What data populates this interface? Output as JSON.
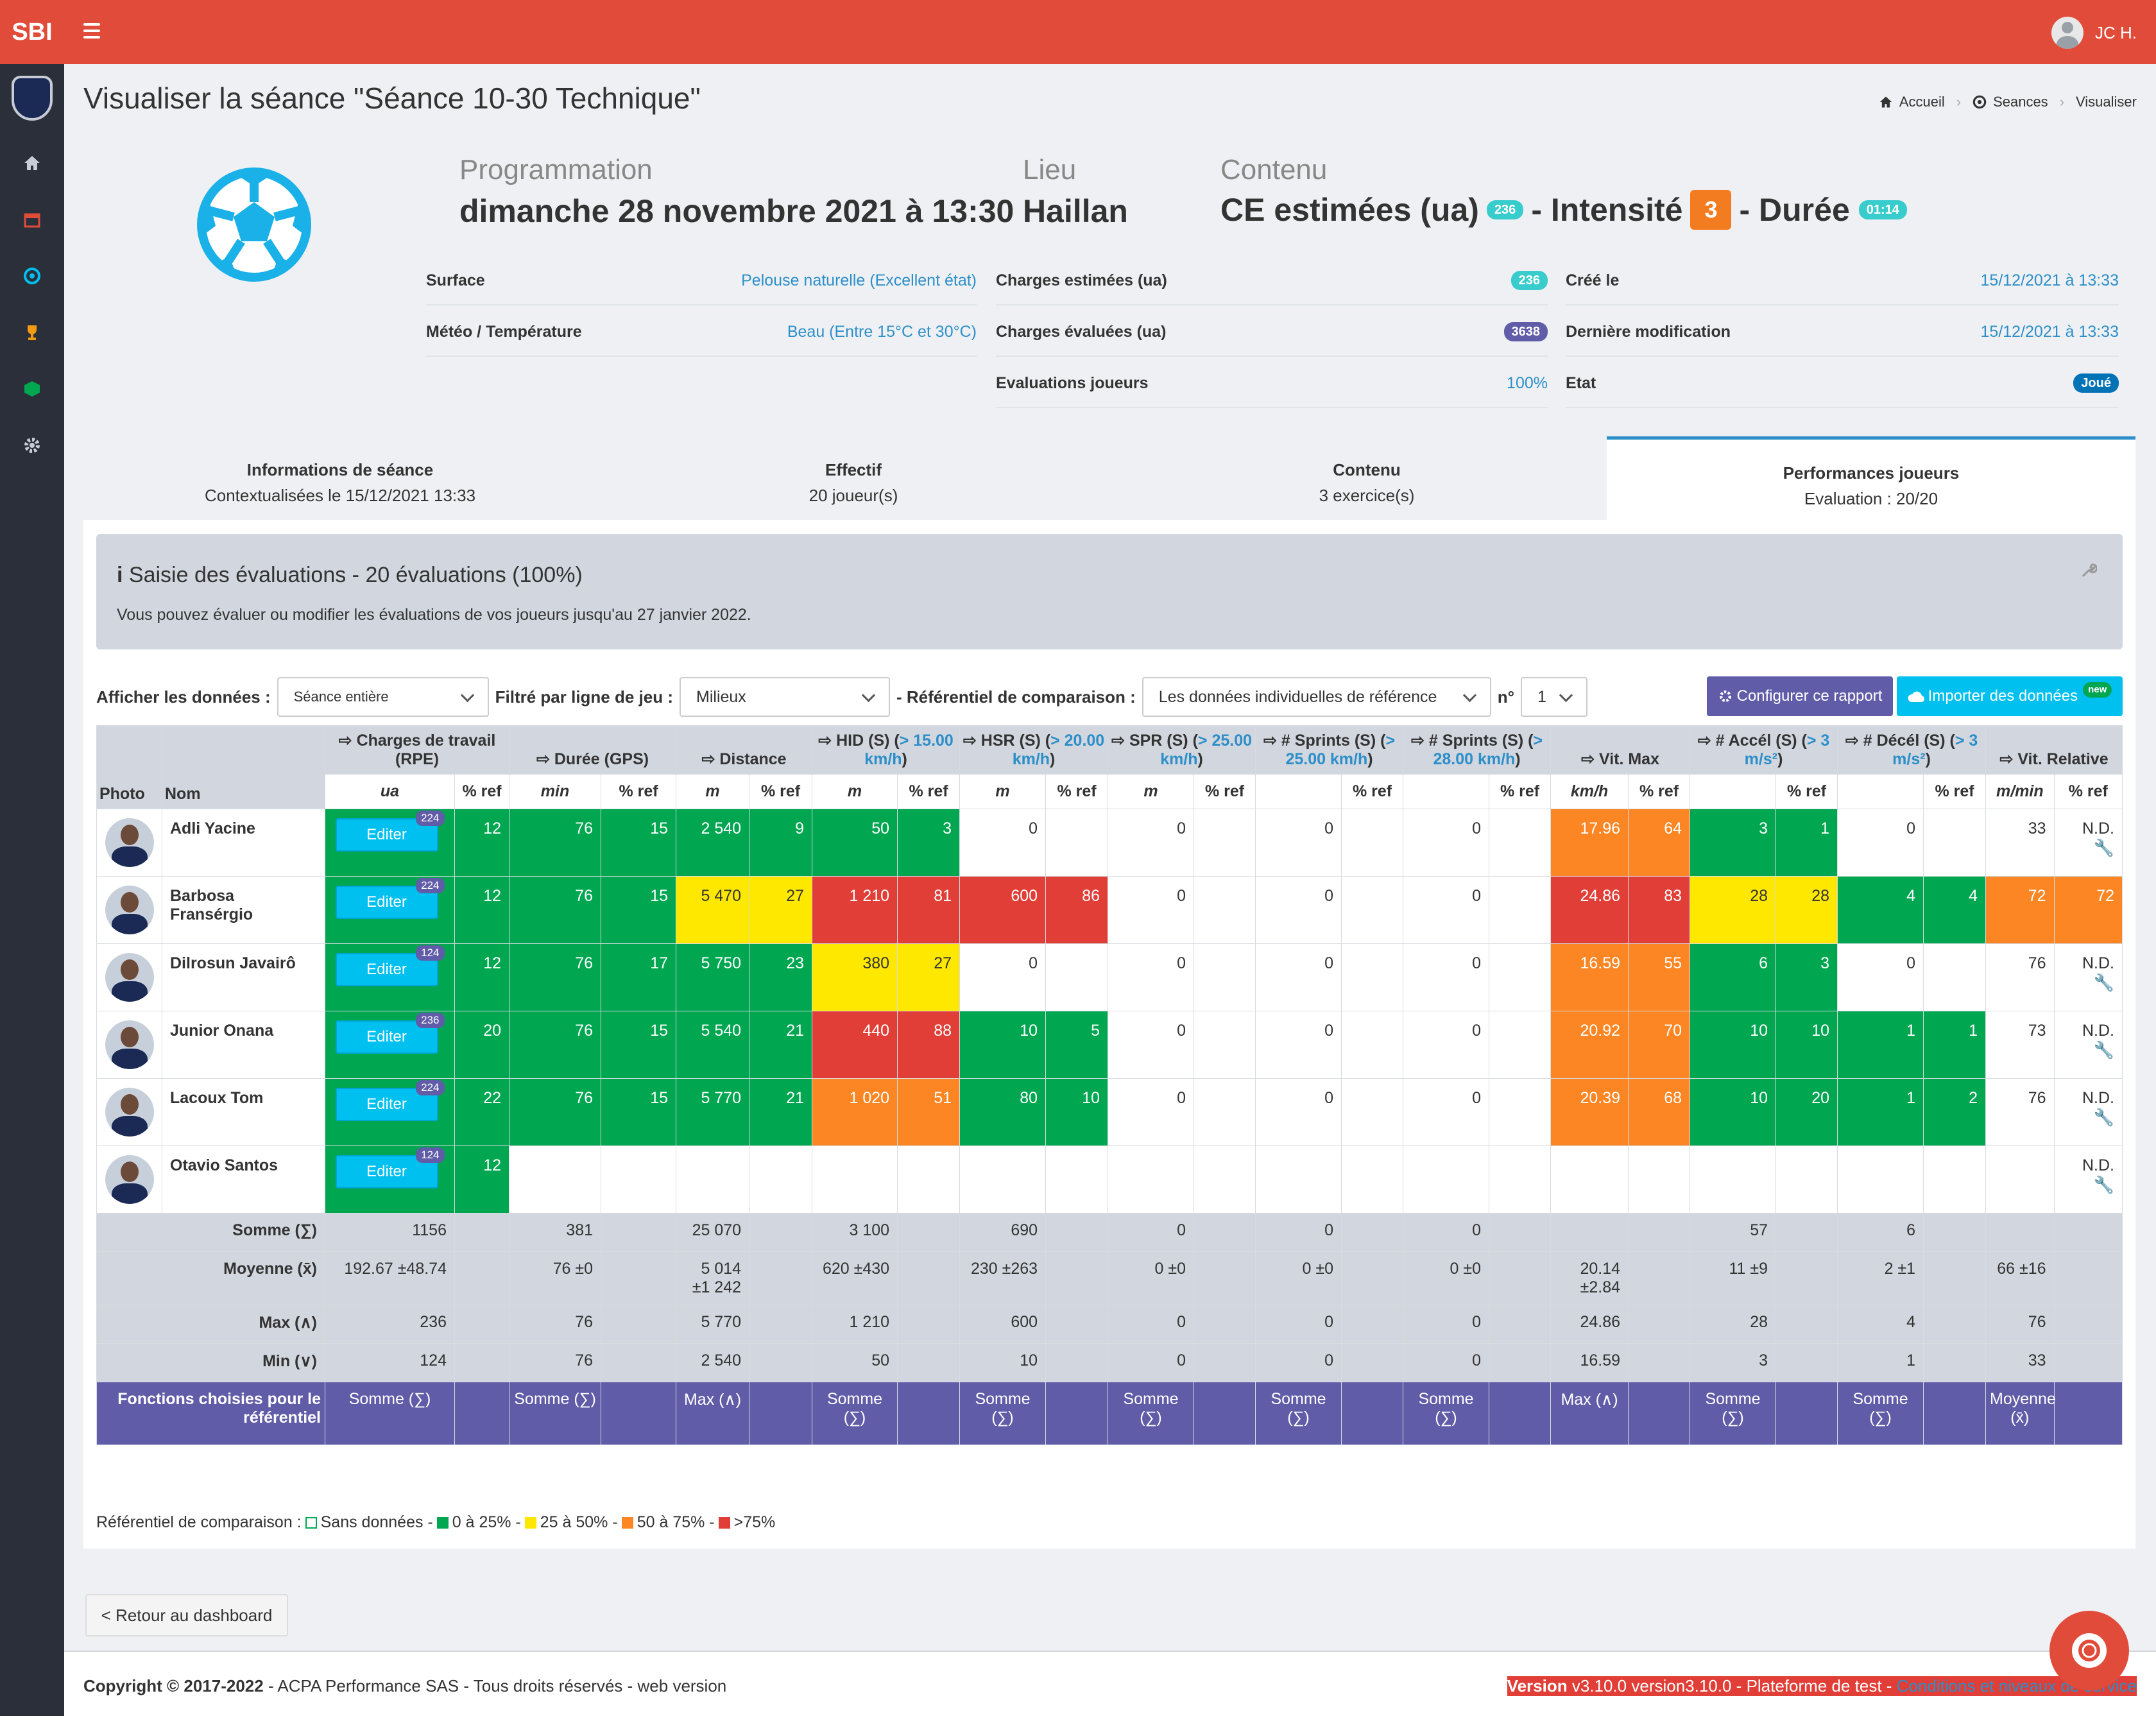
{
  "brand": {
    "logo": "SBI",
    "accent": "#e14c3a"
  },
  "user": {
    "name": "JC H."
  },
  "page": {
    "title": "Visualiser la séance \"Séance 10-30 Technique\""
  },
  "breadcrumb": {
    "home": "Accueil",
    "sessions": "Seances",
    "current": "Visualiser"
  },
  "summary": {
    "programmation_label": "Programmation",
    "programmation_value": "dimanche 28 novembre 2021 à 13:30",
    "lieu_label": "Lieu",
    "lieu_value": "Haillan",
    "contenu_label": "Contenu",
    "ce_label": "CE estimées (ua)",
    "ce_badge": "236",
    "intensite_label": "- Intensité",
    "intensite_value": "3",
    "duree_label": "- Durée",
    "duree_badge": "01:14"
  },
  "info": {
    "surface_label": "Surface",
    "surface_value": "Pelouse naturelle (Excellent état)",
    "meteo_label": "Météo / Température",
    "meteo_value": "Beau (Entre 15°C et 30°C)",
    "ce_est_label": "Charges estimées (ua)",
    "ce_est_value": "236",
    "ce_eval_label": "Charges évaluées (ua)",
    "ce_eval_value": "3638",
    "eval_label": "Evaluations joueurs",
    "eval_value": "100%",
    "cree_label": "Créé le",
    "cree_value": "15/12/2021 à 13:33",
    "modif_label": "Dernière modification",
    "modif_value": "15/12/2021 à 13:33",
    "etat_label": "Etat",
    "etat_value": "Joué"
  },
  "tabs": [
    {
      "title": "Informations de séance",
      "sub": "Contextualisées le 15/12/2021 13:33"
    },
    {
      "title": "Effectif",
      "sub": "20 joueur(s)"
    },
    {
      "title": "Contenu",
      "sub": "3 exercice(s)"
    },
    {
      "title": "Performances joueurs",
      "sub": "Evaluation : 20/20"
    }
  ],
  "alert": {
    "title": "Saisie des évaluations - 20 évaluations (100%)",
    "text": "Vous pouvez évaluer ou modifier les évaluations de vos joueurs jusqu'au 27 janvier 2022."
  },
  "filters": {
    "afficher_label": "Afficher les données :",
    "afficher_value": "Séance entière",
    "filtre_label": "Filtré par ligne de jeu :",
    "filtre_value": "Milieux",
    "ref_label": "- Référentiel de comparaison :",
    "ref_value": "Les données individuelles de référence",
    "no_label": "n°",
    "no_value": "1",
    "config_btn": "Configurer ce rapport",
    "import_btn": "Importer des données",
    "import_badge": "new"
  },
  "table": {
    "photo": "Photo",
    "nom": "Nom",
    "groups": [
      {
        "label": "Charges de travail (RPE)",
        "hl": ""
      },
      {
        "label": "Durée (GPS)",
        "hl": ""
      },
      {
        "label": "Distance",
        "hl": ""
      },
      {
        "label": "HID (S) (",
        "hl": "> 15.00 km/h",
        "end": ")"
      },
      {
        "label": "HSR (S) (",
        "hl": "> 20.00 km/h",
        "end": ")"
      },
      {
        "label": "SPR (S) (",
        "hl": "> 25.00 km/h",
        "end": ")"
      },
      {
        "label": "# Sprints (S) (",
        "hl": "> 25.00 km/h",
        "end": ")"
      },
      {
        "label": "# Sprints (S) (",
        "hl": "> 28.00 km/h",
        "end": ")"
      },
      {
        "label": "Vit. Max",
        "hl": ""
      },
      {
        "label": "# Accél (S) (",
        "hl": "> 3 m/s²",
        "end": ")"
      },
      {
        "label": "# Décél (S) (",
        "hl": "> 3 m/s²",
        "end": ")"
      },
      {
        "label": "Vit. Relative",
        "hl": ""
      }
    ],
    "units": [
      "ua",
      "min",
      "m",
      "m",
      "m",
      "m",
      "",
      "",
      "km/h",
      "",
      "",
      "m/min"
    ],
    "pct_ref": "% ref",
    "edit_label": "Editer",
    "nd": "N.D.",
    "rows": [
      {
        "name": "Adli Yacine",
        "badge": "224",
        "cells": [
          [
            "12",
            "g"
          ],
          [
            "76",
            "g"
          ],
          [
            "15",
            "g"
          ],
          [
            "2 540",
            "g"
          ],
          [
            "9",
            "g"
          ],
          [
            "50",
            "g"
          ],
          [
            "3",
            "g"
          ],
          [
            "0",
            ""
          ],
          [
            "",
            ""
          ],
          [
            "0",
            ""
          ],
          [
            "",
            ""
          ],
          [
            "0",
            ""
          ],
          [
            "",
            ""
          ],
          [
            "0",
            ""
          ],
          [
            "",
            ""
          ],
          [
            "17.96",
            "o"
          ],
          [
            "64",
            "o"
          ],
          [
            "3",
            "g"
          ],
          [
            "1",
            "g"
          ],
          [
            "0",
            ""
          ],
          [
            "",
            ""
          ],
          [
            "33",
            ""
          ],
          [
            "N.D.",
            "nd"
          ]
        ]
      },
      {
        "name": "Barbosa Fransérgio",
        "badge": "224",
        "cells": [
          [
            "12",
            "g"
          ],
          [
            "76",
            "g"
          ],
          [
            "15",
            "g"
          ],
          [
            "5 470",
            "y"
          ],
          [
            "27",
            "y"
          ],
          [
            "1 210",
            "r"
          ],
          [
            "81",
            "r"
          ],
          [
            "600",
            "r"
          ],
          [
            "86",
            "r"
          ],
          [
            "0",
            ""
          ],
          [
            "",
            ""
          ],
          [
            "0",
            ""
          ],
          [
            "",
            ""
          ],
          [
            "0",
            ""
          ],
          [
            "",
            ""
          ],
          [
            "24.86",
            "r"
          ],
          [
            "83",
            "r"
          ],
          [
            "28",
            "y"
          ],
          [
            "28",
            "y"
          ],
          [
            "4",
            "g"
          ],
          [
            "4",
            "g"
          ],
          [
            "72",
            "o"
          ],
          [
            "72",
            "o"
          ]
        ]
      },
      {
        "name": "Dilrosun Javairô",
        "badge": "124",
        "cells": [
          [
            "12",
            "g"
          ],
          [
            "76",
            "g"
          ],
          [
            "17",
            "g"
          ],
          [
            "5 750",
            "g"
          ],
          [
            "23",
            "g"
          ],
          [
            "380",
            "y"
          ],
          [
            "27",
            "y"
          ],
          [
            "0",
            ""
          ],
          [
            "",
            ""
          ],
          [
            "0",
            ""
          ],
          [
            "",
            ""
          ],
          [
            "0",
            ""
          ],
          [
            "",
            ""
          ],
          [
            "0",
            ""
          ],
          [
            "",
            ""
          ],
          [
            "16.59",
            "o"
          ],
          [
            "55",
            "o"
          ],
          [
            "6",
            "g"
          ],
          [
            "3",
            "g"
          ],
          [
            "0",
            ""
          ],
          [
            "",
            ""
          ],
          [
            "76",
            ""
          ],
          [
            "N.D.",
            "nd"
          ]
        ]
      },
      {
        "name": "Junior Onana",
        "badge": "236",
        "cells": [
          [
            "20",
            "g"
          ],
          [
            "76",
            "g"
          ],
          [
            "15",
            "g"
          ],
          [
            "5 540",
            "g"
          ],
          [
            "21",
            "g"
          ],
          [
            "440",
            "r"
          ],
          [
            "88",
            "r"
          ],
          [
            "10",
            "g"
          ],
          [
            "5",
            "g"
          ],
          [
            "0",
            ""
          ],
          [
            "",
            ""
          ],
          [
            "0",
            ""
          ],
          [
            "",
            ""
          ],
          [
            "0",
            ""
          ],
          [
            "",
            ""
          ],
          [
            "20.92",
            "o"
          ],
          [
            "70",
            "o"
          ],
          [
            "10",
            "g"
          ],
          [
            "10",
            "g"
          ],
          [
            "1",
            "g"
          ],
          [
            "1",
            "g"
          ],
          [
            "73",
            ""
          ],
          [
            "N.D.",
            "nd"
          ]
        ]
      },
      {
        "name": "Lacoux Tom",
        "badge": "224",
        "cells": [
          [
            "22",
            "g"
          ],
          [
            "76",
            "g"
          ],
          [
            "15",
            "g"
          ],
          [
            "5 770",
            "g"
          ],
          [
            "21",
            "g"
          ],
          [
            "1 020",
            "o"
          ],
          [
            "51",
            "o"
          ],
          [
            "80",
            "g"
          ],
          [
            "10",
            "g"
          ],
          [
            "0",
            ""
          ],
          [
            "",
            ""
          ],
          [
            "0",
            ""
          ],
          [
            "",
            ""
          ],
          [
            "0",
            ""
          ],
          [
            "",
            ""
          ],
          [
            "20.39",
            "o"
          ],
          [
            "68",
            "o"
          ],
          [
            "10",
            "g"
          ],
          [
            "20",
            "g"
          ],
          [
            "1",
            "g"
          ],
          [
            "2",
            "g"
          ],
          [
            "76",
            ""
          ],
          [
            "N.D.",
            "nd"
          ]
        ]
      },
      {
        "name": "Otavio Santos",
        "badge": "124",
        "cells": [
          [
            "12",
            "g"
          ],
          [
            "",
            ""
          ],
          [
            "",
            ""
          ],
          [
            "",
            ""
          ],
          [
            "",
            ""
          ],
          [
            "",
            ""
          ],
          [
            "",
            ""
          ],
          [
            "",
            ""
          ],
          [
            "",
            ""
          ],
          [
            "",
            ""
          ],
          [
            "",
            ""
          ],
          [
            "",
            ""
          ],
          [
            "",
            ""
          ],
          [
            "",
            ""
          ],
          [
            "",
            ""
          ],
          [
            "",
            ""
          ],
          [
            "",
            ""
          ],
          [
            "",
            ""
          ],
          [
            "",
            ""
          ],
          [
            "",
            ""
          ],
          [
            "",
            ""
          ],
          [
            "",
            ""
          ],
          [
            "N.D.",
            "nd"
          ]
        ]
      }
    ],
    "stats": [
      {
        "label": "Somme (∑)",
        "vals": [
          "1156",
          "381",
          "25 070",
          "3 100",
          "690",
          "0",
          "0",
          "0",
          "",
          "57",
          "6",
          ""
        ]
      },
      {
        "label": "Moyenne (x̄)",
        "vals": [
          "192.67 ±48.74",
          "76 ±0",
          "5 014 ±1 242",
          "620 ±430",
          "230 ±263",
          "0 ±0",
          "0 ±0",
          "0 ±0",
          "20.14 ±2.84",
          "11 ±9",
          "2 ±1",
          "66 ±16"
        ]
      },
      {
        "label": "Max (∧)",
        "vals": [
          "236",
          "76",
          "5 770",
          "1 210",
          "600",
          "0",
          "0",
          "0",
          "24.86",
          "28",
          "4",
          "76"
        ]
      },
      {
        "label": "Min (∨)",
        "vals": [
          "124",
          "76",
          "2 540",
          "50",
          "10",
          "0",
          "0",
          "0",
          "16.59",
          "3",
          "1",
          "33"
        ]
      }
    ],
    "fn_label": "Fonctions choisies pour le référentiel",
    "fns": [
      "Somme (∑)",
      "Somme (∑)",
      "Max (∧)",
      "Somme (∑)",
      "Somme (∑)",
      "Somme (∑)",
      "Somme (∑)",
      "Somme (∑)",
      "Max (∧)",
      "Somme (∑)",
      "Somme (∑)",
      "Moyenne (x̄)"
    ]
  },
  "legend": {
    "label": "Référentiel de comparaison :",
    "items": [
      {
        "text": "Sans données -",
        "color": "#ffffff"
      },
      {
        "text": "0 à 25% -",
        "color": "#00a650"
      },
      {
        "text": "25 à 50% -",
        "color": "#ffe800"
      },
      {
        "text": "50 à 75% -",
        "color": "#fb8623"
      },
      {
        "text": ">75%",
        "color": "#e03e36"
      }
    ]
  },
  "back_btn": "< Retour au dashboard",
  "footer": {
    "copyright": "Copyright © 2017-2022",
    "company": " - ACPA Performance SAS - Tous droits réservés - web version",
    "version_label": "Version",
    "version_value": " v3.10.0 version3.10.0 - Plateforme de test - ",
    "link": "Conditions et niveaux de service"
  }
}
